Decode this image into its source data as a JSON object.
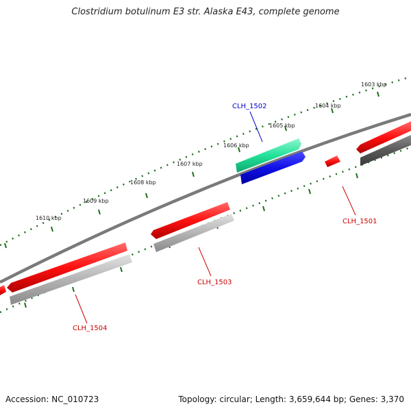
{
  "title": "Clostridium botulinum E3 str. Alaska E43, complete genome",
  "footer": {
    "accession": "Accession: NC_010723",
    "summary": "Topology: circular; Length: 3,659,644 bp; Genes: 3,370"
  },
  "ticks": [
    "1603 kbp",
    "1604 kbp",
    "1605 kbp",
    "1606 kbp",
    "1607 kbp",
    "1608 kbp",
    "1609 kbp",
    "1610 kbp"
  ],
  "genes": {
    "CLH_1501": "CLH_1501",
    "CLH_1502": "CLH_1502",
    "CLH_1503": "CLH_1503",
    "CLH_1504": "CLH_1504"
  },
  "colors": {
    "backbone": "#777777",
    "ruler": "#1a6e1a",
    "gene_red": "#ff1a1a",
    "gene_grey": "#b8b8b8",
    "gene_darkgrey": "#606060",
    "gene_green": "#2ee6a0",
    "gene_blue": "#1010e0",
    "label_red": "#cc0000",
    "label_blue": "#0000cc"
  }
}
